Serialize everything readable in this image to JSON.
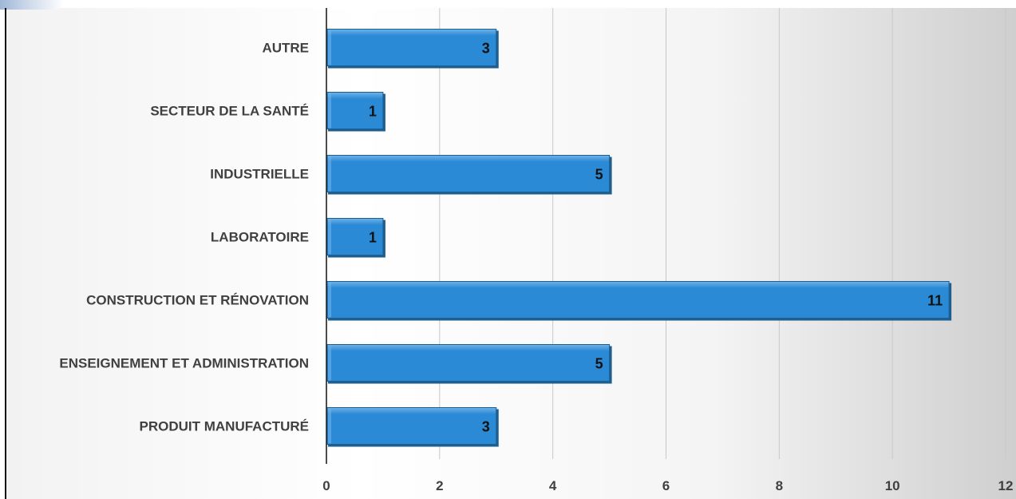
{
  "chart_data": {
    "type": "bar",
    "orientation": "horizontal",
    "categories": [
      "AUTRE",
      "SECTEUR DE LA SANTÉ",
      "INDUSTRIELLE",
      "LABORATOIRE",
      "CONSTRUCTION ET RÉNOVATION",
      "ENSEIGNEMENT ET ADMINISTRATION",
      "PRODUIT MANUFACTURÉ"
    ],
    "values": [
      3,
      1,
      5,
      1,
      11,
      5,
      3
    ],
    "xlim": [
      0,
      12
    ],
    "xticks": [
      "0",
      "2",
      "4",
      "6",
      "8",
      "10",
      "12"
    ],
    "data_labels": true,
    "grid": "vertical",
    "title": "",
    "xlabel": "",
    "ylabel": "",
    "colors": {
      "bar": "#2b8ad6",
      "bar_shadow": "#1f5f8f",
      "bar_edge": "#6fb3e8",
      "grid": "#c8c8c8",
      "axis": "#111111",
      "text": "#404040",
      "label": "#111111"
    }
  }
}
